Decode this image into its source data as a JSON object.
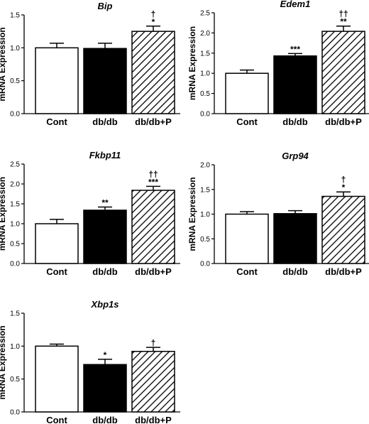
{
  "chart_data": [
    {
      "type": "bar",
      "title": "Bip",
      "ylabel": "mRNA Expression",
      "ylim": [
        0,
        1.5
      ],
      "yticks": [
        "0.0",
        "0.5",
        "1.0",
        "1.5"
      ],
      "categories": [
        "Cont",
        "db/db",
        "db/db+P"
      ],
      "values": [
        1.0,
        0.99,
        1.25
      ],
      "errors": [
        0.07,
        0.08,
        0.08
      ],
      "annotations": [
        [],
        [],
        [
          "*",
          "†"
        ]
      ],
      "fills": [
        "white",
        "black",
        "hatched"
      ],
      "grid": false
    },
    {
      "type": "bar",
      "title": "Edem1",
      "ylabel": "mRNA Expression",
      "ylim": [
        0,
        2.5
      ],
      "yticks": [
        "0.0",
        "0.5",
        "1.0",
        "1.5",
        "2.0",
        "2.5"
      ],
      "categories": [
        "Cont",
        "db/db",
        "db/db+P"
      ],
      "values": [
        1.0,
        1.43,
        2.04
      ],
      "errors": [
        0.08,
        0.06,
        0.13
      ],
      "annotations": [
        [],
        [
          "***"
        ],
        [
          "**",
          "††"
        ]
      ],
      "fills": [
        "white",
        "black",
        "hatched"
      ],
      "grid": false
    },
    {
      "type": "bar",
      "title": "Fkbp11",
      "ylabel": "mRNA Expression",
      "ylim": [
        0,
        2.5
      ],
      "yticks": [
        "0.0",
        "0.5",
        "1.0",
        "1.5",
        "2.0",
        "2.5"
      ],
      "categories": [
        "Cont",
        "db/db",
        "db/db+P"
      ],
      "values": [
        1.0,
        1.34,
        1.84
      ],
      "errors": [
        0.11,
        0.08,
        0.1
      ],
      "annotations": [
        [],
        [
          "**"
        ],
        [
          "***",
          "††"
        ]
      ],
      "fills": [
        "white",
        "black",
        "hatched"
      ],
      "grid": false
    },
    {
      "type": "bar",
      "title": "Grp94",
      "ylabel": "mRNA Expression",
      "ylim": [
        0,
        2.0
      ],
      "yticks": [
        "0.0",
        "0.5",
        "1.0",
        "1.5",
        "2.0"
      ],
      "categories": [
        "Cont",
        "db/db",
        "db/db+P"
      ],
      "values": [
        1.0,
        1.01,
        1.36
      ],
      "errors": [
        0.05,
        0.06,
        0.09
      ],
      "annotations": [
        [],
        [],
        [
          "*",
          "†"
        ]
      ],
      "fills": [
        "white",
        "black",
        "hatched"
      ],
      "grid": false
    },
    {
      "type": "bar",
      "title": "Xbp1s",
      "ylabel": "mRNA Expression",
      "ylim": [
        0,
        1.5
      ],
      "yticks": [
        "0.0",
        "0.5",
        "1.0",
        "1.5"
      ],
      "categories": [
        "Cont",
        "db/db",
        "db/db+P"
      ],
      "values": [
        1.0,
        0.72,
        0.92
      ],
      "errors": [
        0.03,
        0.08,
        0.06
      ],
      "annotations": [
        [],
        [
          "*"
        ],
        [
          "†"
        ]
      ],
      "fills": [
        "white",
        "black",
        "hatched"
      ],
      "grid": false
    }
  ]
}
